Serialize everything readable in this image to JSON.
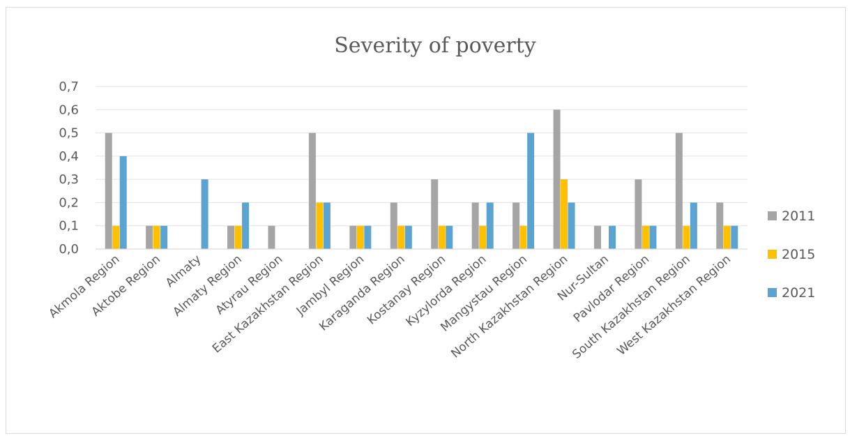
{
  "chart_data": {
    "type": "bar",
    "title": "Severity of poverty",
    "xlabel": "",
    "ylabel": "",
    "ylim": [
      0,
      0.7
    ],
    "yticks": [
      "0,0",
      "0,1",
      "0,2",
      "0,3",
      "0,4",
      "0,5",
      "0,6",
      "0,7"
    ],
    "grid": true,
    "legend_position": "right",
    "categories": [
      "Akmola Region",
      "Aktobe Region",
      "Almaty",
      "Almaty Region",
      "Atyrau Region",
      "East Kazakhstan Region",
      "Jambyl Region",
      "Karaganda Region",
      "Kostanay Region",
      "Kyzylorda Region",
      "Mangystau Region",
      "North Kazakhstan Region",
      "Nur-Sultan",
      "Pavlodar Region",
      "South Kazakhstan Region",
      "West Kazakhstan Region"
    ],
    "series": [
      {
        "name": "2011",
        "color": "#a5a5a5",
        "values": [
          0.5,
          0.1,
          0.0,
          0.1,
          0.1,
          0.5,
          0.1,
          0.2,
          0.3,
          0.2,
          0.2,
          0.6,
          0.1,
          0.3,
          0.5,
          0.2
        ]
      },
      {
        "name": "2015",
        "color": "#ffc000",
        "values": [
          0.1,
          0.1,
          0.0,
          0.1,
          0.0,
          0.2,
          0.1,
          0.1,
          0.1,
          0.1,
          0.1,
          0.3,
          0.0,
          0.1,
          0.1,
          0.1
        ]
      },
      {
        "name": "2021",
        "color": "#5ba3d0",
        "values": [
          0.4,
          0.1,
          0.3,
          0.2,
          0.0,
          0.2,
          0.1,
          0.1,
          0.1,
          0.2,
          0.5,
          0.2,
          0.1,
          0.1,
          0.2,
          0.1
        ]
      }
    ]
  }
}
